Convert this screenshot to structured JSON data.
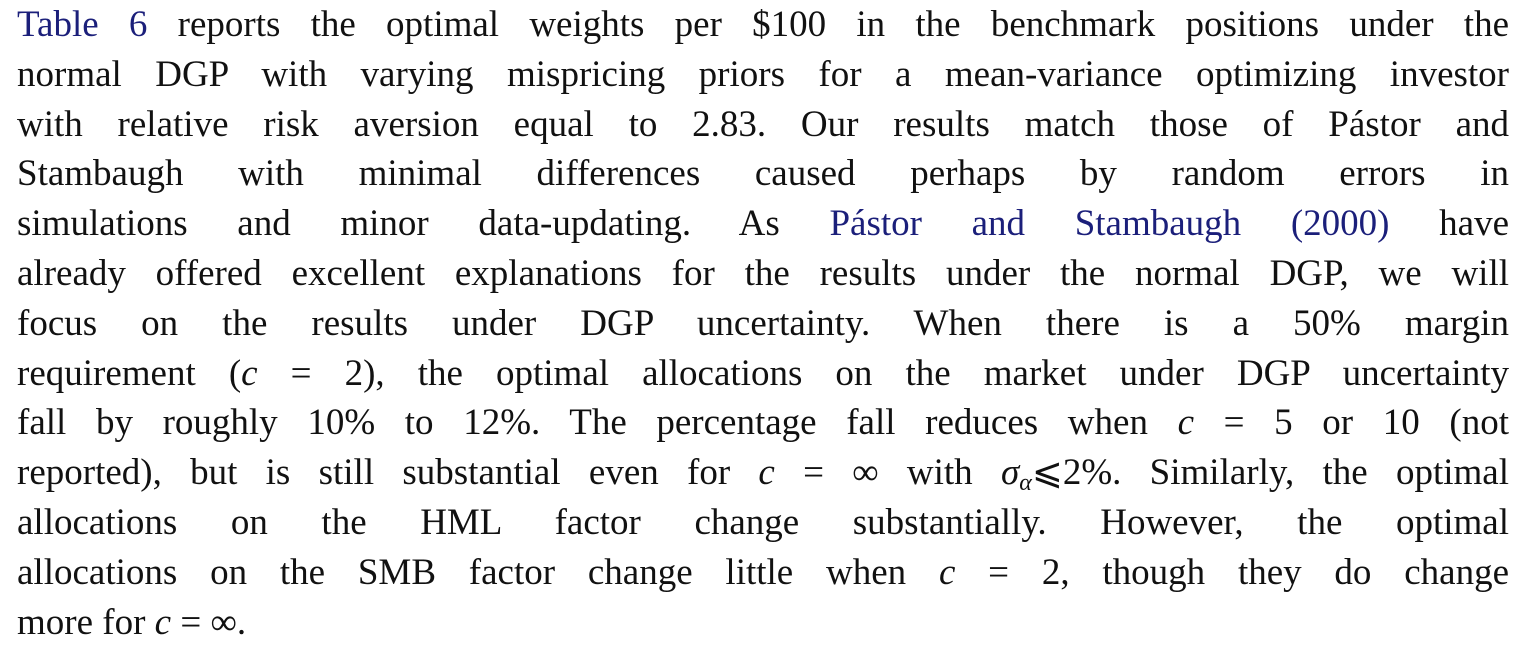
{
  "paragraph": {
    "lines": [
      [
        {
          "text": "Table 6",
          "style": "ref",
          "name": "table-reference"
        },
        {
          "text": " reports the optimal weights per $100 in the benchmark positions under the"
        }
      ],
      [
        {
          "text": "normal DGP with varying mispricing priors for a mean-variance optimizing investor"
        }
      ],
      [
        {
          "text": "with relative risk aversion equal to 2.83. Our results match those of Pástor and"
        }
      ],
      [
        {
          "text": "Stambaugh with minimal differences caused perhaps by random errors in"
        }
      ],
      [
        {
          "text": "simulations and minor data-updating. As "
        },
        {
          "text": "Pástor and Stambaugh (2000)",
          "style": "ref",
          "name": "citation-pastor-stambaugh"
        },
        {
          "text": " have"
        }
      ],
      [
        {
          "text": "already offered excellent explanations for the results under the normal DGP, we will"
        }
      ],
      [
        {
          "text": "focus on the results under DGP uncertainty. When there is a 50% margin"
        }
      ],
      [
        {
          "text": "requirement ("
        },
        {
          "text": "c",
          "style": "ital",
          "name": "math-variable"
        },
        {
          "text": " = 2), the optimal allocations on the market under DGP uncertainty"
        }
      ],
      [
        {
          "text": "fall by roughly 10% to 12%. The percentage fall reduces when "
        },
        {
          "text": "c",
          "style": "ital",
          "name": "math-variable"
        },
        {
          "text": " = 5 or 10 (not"
        }
      ],
      [
        {
          "text": "reported), but is still substantial even for "
        },
        {
          "text": "c",
          "style": "ital",
          "name": "math-variable"
        },
        {
          "text": " = ∞ with "
        },
        {
          "text": "σ",
          "style": "ital",
          "name": "math-variable"
        },
        {
          "text": "α",
          "style": "sub",
          "name": "math-subscript"
        },
        {
          "text": "⩽2%. Similarly, the optimal"
        }
      ],
      [
        {
          "text": "allocations on the HML factor change substantially. However, the optimal"
        }
      ],
      [
        {
          "text": "allocations on the SMB factor change little when "
        },
        {
          "text": "c",
          "style": "ital",
          "name": "math-variable"
        },
        {
          "text": " = 2, though they do change"
        }
      ],
      [
        {
          "text": "more for "
        },
        {
          "text": "c",
          "style": "ital",
          "name": "math-variable"
        },
        {
          "text": " = ∞."
        }
      ]
    ]
  },
  "colors": {
    "body_text": "#111111",
    "reference_link": "#1b1f7a",
    "background": "#ffffff"
  }
}
